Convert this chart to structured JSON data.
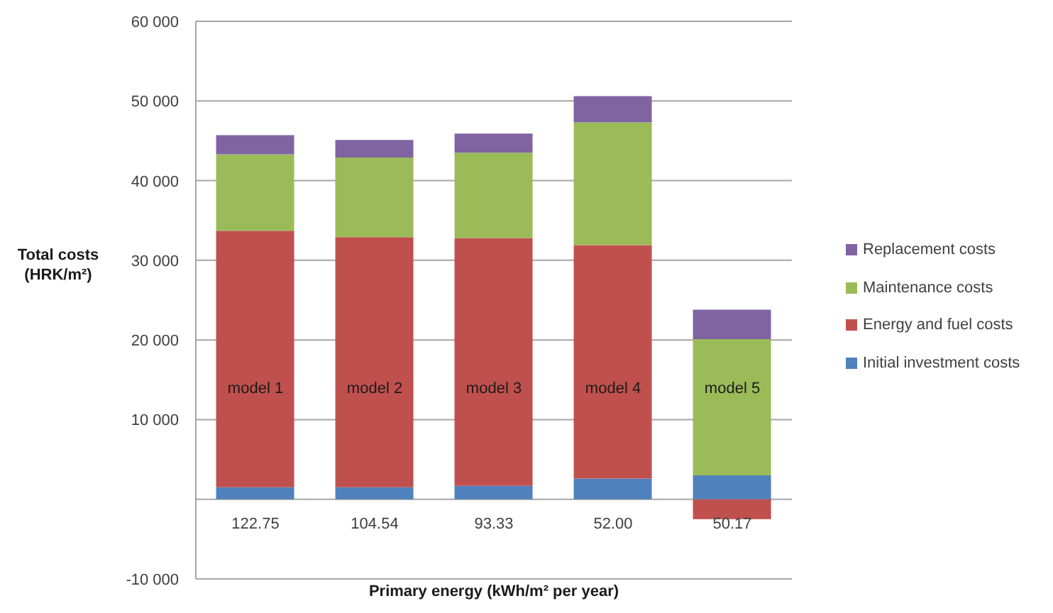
{
  "chart_data": {
    "type": "bar",
    "stacked": true,
    "xlabel": "Primary energy (kWh/m² per year)",
    "ylabel": "Total costs (HRK/m²)",
    "categories": [
      "122.75",
      "104.54",
      "93.33",
      "52.00",
      "50.17"
    ],
    "series": [
      {
        "name": "Initial investment costs",
        "color": "#4f81bd",
        "values": [
          1500,
          1500,
          1700,
          2600,
          3000
        ]
      },
      {
        "name": "Energy and fuel costs",
        "color": "#c0504d",
        "values": [
          32200,
          31400,
          31100,
          29300,
          -2500
        ]
      },
      {
        "name": "Maintenance costs",
        "color": "#9bbb59",
        "values": [
          9600,
          10000,
          10700,
          15400,
          17100
        ]
      },
      {
        "name": "Replacement costs",
        "color": "#8064a2",
        "values": [
          2400,
          2200,
          2400,
          3300,
          3700
        ]
      }
    ],
    "ylim": [
      -10000,
      60000
    ],
    "yticks": [
      {
        "value": -10000,
        "label": "-10 000"
      },
      {
        "value": 0,
        "label": null
      },
      {
        "value": 10000,
        "label": "10 000"
      },
      {
        "value": 20000,
        "label": "20 000"
      },
      {
        "value": 30000,
        "label": "30 000"
      },
      {
        "value": 40000,
        "label": "40 000"
      },
      {
        "value": 50000,
        "label": "50 000"
      },
      {
        "value": 60000,
        "label": "60 000"
      }
    ],
    "grid": "y",
    "legend": "right",
    "annotations": [
      "model 1",
      "model 2",
      "model 3",
      "model 4",
      "model 5"
    ]
  }
}
